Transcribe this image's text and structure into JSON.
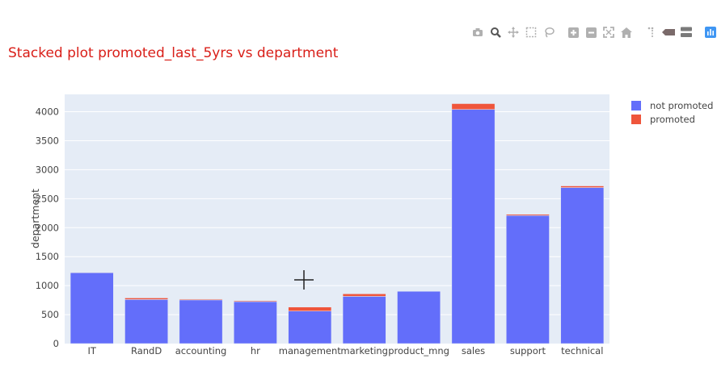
{
  "chart_data": {
    "type": "bar",
    "barmode": "stack",
    "title": "Stacked plot promoted_last_5yrs vs department",
    "xlabel": "",
    "ylabel": "department",
    "ylim": [
      0,
      4300
    ],
    "yticks": [
      0,
      500,
      1000,
      1500,
      2000,
      2500,
      3000,
      3500,
      4000
    ],
    "categories": [
      "IT",
      "RandD",
      "accounting",
      "hr",
      "management",
      "marketing",
      "product_mng",
      "sales",
      "support",
      "technical"
    ],
    "series": [
      {
        "name": "not promoted",
        "color": "#636efa",
        "values": [
          1224,
          760,
          753,
          724,
          561,
          815,
          902,
          4040,
          2209,
          2692
        ]
      },
      {
        "name": "promoted",
        "color": "#ef553b",
        "values": [
          3,
          27,
          14,
          15,
          69,
          43,
          0,
          100,
          20,
          28
        ]
      }
    ],
    "grid": true,
    "legend_position": "top-right",
    "plot_bgcolor": "#e5ecf6",
    "title_color": "#d91e18"
  },
  "modebar": {
    "buttons": [
      {
        "icon": "camera-icon"
      },
      {
        "icon": "zoom-icon"
      },
      {
        "icon": "pan-icon"
      },
      {
        "icon": "box-select-icon"
      },
      {
        "icon": "lasso-select-icon"
      },
      {
        "icon": "zoom-in-icon"
      },
      {
        "icon": "zoom-out-icon"
      },
      {
        "icon": "autoscale-icon"
      },
      {
        "icon": "reset-axes-icon"
      },
      {
        "icon": "spike-lines-icon"
      },
      {
        "icon": "hover-closest-icon"
      },
      {
        "icon": "hover-compare-icon"
      },
      {
        "icon": "plotly-logo-icon"
      }
    ]
  }
}
